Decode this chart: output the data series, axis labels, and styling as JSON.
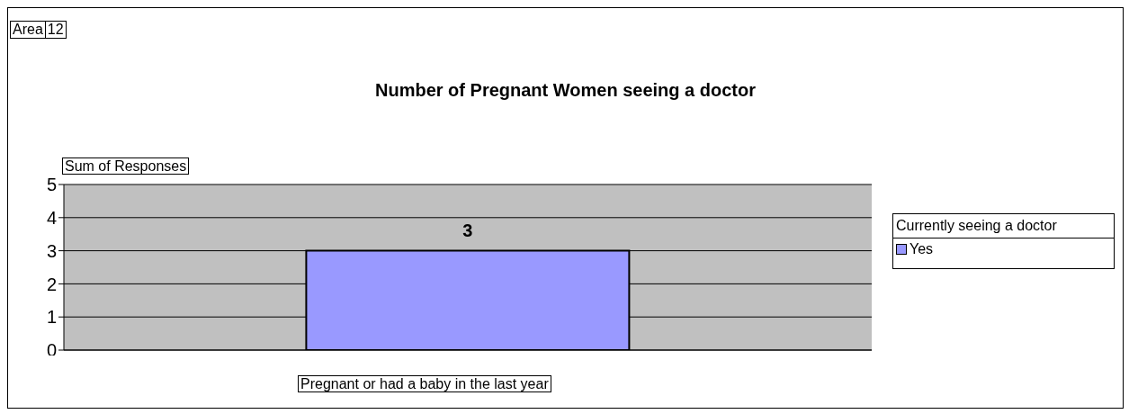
{
  "chart_data": {
    "type": "bar",
    "title": "Number of Pregnant Women seeing a doctor",
    "ylabel": "Sum of Responses",
    "xlabel": "Pregnant or had a baby in the last year",
    "legend_title": "Currently seeing a doctor",
    "annotations": [
      "Area",
      "12"
    ],
    "categories": [
      null
    ],
    "series": [
      {
        "name": "Yes",
        "color": "#9999ff",
        "values": [
          3
        ]
      }
    ],
    "ylim": [
      0,
      5
    ],
    "yticks": [
      0,
      1,
      2,
      3,
      4,
      5
    ],
    "grid": "y",
    "legend": "right",
    "data_labels": true
  }
}
